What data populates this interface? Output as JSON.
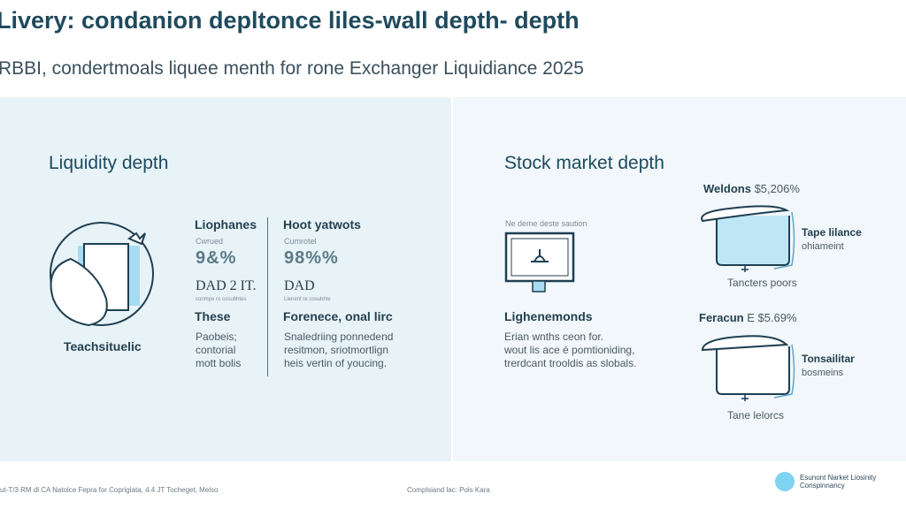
{
  "header": {
    "title": "Livery: condanion depltonce liles-wall depth- depth",
    "subtitle": "RBBI, condertmoals liquee menth for rone Exchanger Liquidiance 2025"
  },
  "left": {
    "heading": "Liquidity depth",
    "illustration_label": "Teachsituelic",
    "col1": {
      "title": "Liophanes",
      "caption": "Cwrued",
      "glyphs": "9&%",
      "dad": "DAD 2 IT.",
      "dad_caption": "conmpe ro cosubhtes",
      "subtitle": "These",
      "body": [
        "Paobeis;",
        "contorial",
        "mott bolis"
      ]
    },
    "col2": {
      "title": "Hoot yatwots",
      "caption": "Cumrotel",
      "glyphs": "98%%",
      "dad": "DAD",
      "dad_caption": "Lienent re cosubhte",
      "subtitle": "Forenece, onal lirc",
      "body": [
        "Snaledriing ponnedend",
        "resitmon, sriotmortlign",
        "heis vertin of youcing."
      ]
    }
  },
  "right": {
    "heading": "Stock market depth",
    "monitor_caption": "Ne deme deste saution",
    "subtitle": "Lighenemonds",
    "body": [
      "Erian wnths ceon for.",
      "wout lis ace é pomtioniding,",
      "trerdcant trooldis as slobals."
    ],
    "tank1": {
      "title": "Weldons",
      "value": "$5,206%",
      "side_title": "Tape lilance",
      "side_sub": "ohiameint",
      "bottom": "Tancters poors",
      "fill_color": "#bfe6f5"
    },
    "tank2": {
      "title": "Feracun",
      "value": "E $5.69%",
      "side_title": "Tonsailitar",
      "side_sub": "bosmeins",
      "bottom": "Tane lelorcs"
    }
  },
  "footer": {
    "left": "ut-T/3 RM dl CA Natolce Fepra for Copriglata, 4.4 JT Tocheget, Melso",
    "center": "Complsiand lac: Pols Kara",
    "brand_line1": "Esunont Narket Liosinity",
    "brand_line2": "Conspinnancy",
    "brand_color": "#7fd3f0"
  },
  "colors": {
    "accent": "#5cc3e6",
    "dark": "#1f4a5e"
  }
}
